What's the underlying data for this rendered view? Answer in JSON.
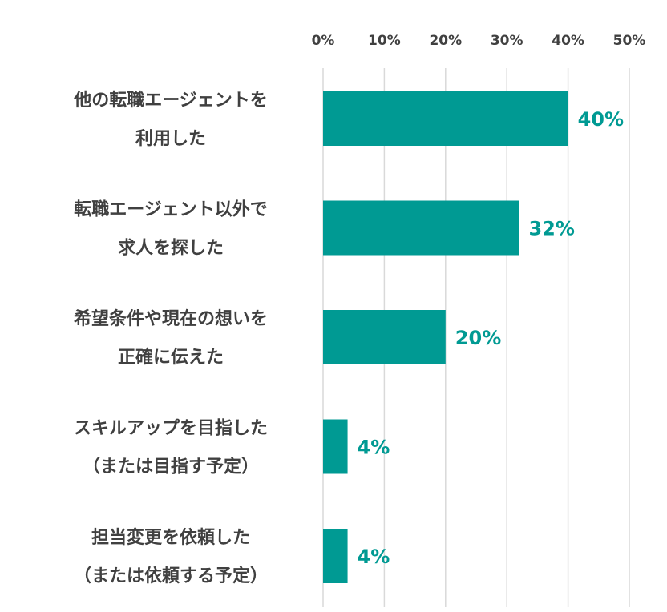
{
  "colors": {
    "bar": "#009a93",
    "data_label": "#009a93",
    "text": "#404040",
    "grid": "#d9d9d9"
  },
  "chart_data": {
    "type": "bar",
    "orientation": "horizontal",
    "categories": [
      [
        "他の転職エージェントを",
        "利用した"
      ],
      [
        "転職エージェント以外で",
        "求人を探した"
      ],
      [
        "希望条件や現在の想いを",
        "正確に伝えた"
      ],
      [
        "スキルアップを目指した",
        "（または目指す予定）"
      ],
      [
        "担当変更を依頼した",
        "（または依頼する予定）"
      ]
    ],
    "values": [
      40,
      32,
      20,
      4,
      4
    ],
    "data_labels": [
      "40%",
      "32%",
      "20%",
      "4%",
      "4%"
    ],
    "xlim": [
      0,
      50
    ],
    "x_ticks": [
      0,
      10,
      20,
      30,
      40,
      50
    ],
    "x_tick_labels": [
      "0%",
      "10%",
      "20%",
      "30%",
      "40%",
      "50%"
    ],
    "x_axis_position": "top",
    "grid": true,
    "legend": "none",
    "title": "",
    "xlabel": "",
    "ylabel": ""
  }
}
